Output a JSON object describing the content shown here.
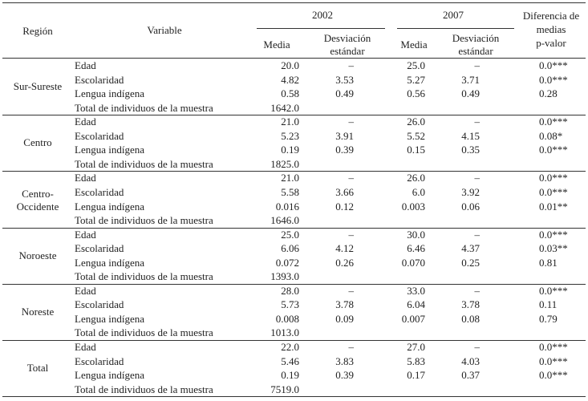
{
  "header": {
    "region": "Región",
    "variable": "Variable",
    "year1": "2002",
    "year2": "2007",
    "media1": "Media",
    "sd1": "Desviación estándar",
    "media2": "Media",
    "sd2": "Desviación estándar",
    "diff": "Diferencia de\nmedias\np-valor"
  },
  "table": {
    "groups": [
      {
        "region": "Sur-Sureste",
        "rows": [
          [
            "Edad",
            "20.0",
            "–",
            "25.0",
            "–",
            "0.0***"
          ],
          [
            "Escolaridad",
            "4.82",
            "3.53",
            "5.27",
            "3.71",
            "0.0***"
          ],
          [
            "Lengua indígena",
            "0.58",
            "0.49",
            "0.56",
            "0.49",
            "0.28"
          ],
          [
            "Total de individuos de la muestra",
            "1642.0"
          ]
        ]
      },
      {
        "region": "Centro",
        "rows": [
          [
            "Edad",
            "21.0",
            "–",
            "26.0",
            "–",
            "0.0***"
          ],
          [
            "Escolaridad",
            "5.23",
            "3.91",
            "5.52",
            "4.15",
            "0.08*"
          ],
          [
            "Lengua indígena",
            "0.19",
            "0.39",
            "0.15",
            "0.35",
            "0.0***"
          ],
          [
            "Total de individuos de la muestra",
            "1825.0"
          ]
        ]
      },
      {
        "region": "Centro-Occidente",
        "rows": [
          [
            "Edad",
            "21.0",
            "–",
            "26.0",
            "–",
            "0.0***"
          ],
          [
            "Escolaridad",
            "5.58",
            "3.66",
            "6.0",
            "3.92",
            "0.0***"
          ],
          [
            "Lengua indígena",
            "0.016",
            "0.12",
            "0.003",
            "0.06",
            "0.01**"
          ],
          [
            "Total de individuos de la muestra",
            "1646.0"
          ]
        ]
      },
      {
        "region": "Noroeste",
        "rows": [
          [
            "Edad",
            "25.0",
            "–",
            "30.0",
            "–",
            "0.0***"
          ],
          [
            "Escolaridad",
            "6.06",
            "4.12",
            "6.46",
            "4.37",
            "0.03**"
          ],
          [
            "Lengua indígena",
            "0.072",
            "0.26",
            "0.070",
            "0.25",
            "0.81"
          ],
          [
            "Total de individuos de la muestra",
            "1393.0"
          ]
        ]
      },
      {
        "region": "Noreste",
        "rows": [
          [
            "Edad",
            "28.0",
            "–",
            "33.0",
            "–",
            "0.0***"
          ],
          [
            "Escolaridad",
            "5.73",
            "3.78",
            "6.04",
            "3.78",
            "0.11"
          ],
          [
            "Lengua indígena",
            "0.008",
            "0.09",
            "0.007",
            "0.08",
            "0.79"
          ],
          [
            "Total de individuos de la muestra",
            "1013.0"
          ]
        ]
      },
      {
        "region": "Total",
        "rows": [
          [
            "Edad",
            "22.0",
            "–",
            "27.0",
            "–",
            "0.0***"
          ],
          [
            "Escolaridad",
            "5.46",
            "3.83",
            "5.83",
            "4.03",
            "0.0***"
          ],
          [
            "Lengua indígena",
            "0.19",
            "0.39",
            "0.17",
            "0.37",
            "0.0***"
          ],
          [
            "Total de individuos de la muestra",
            "7519.0"
          ]
        ]
      }
    ]
  }
}
